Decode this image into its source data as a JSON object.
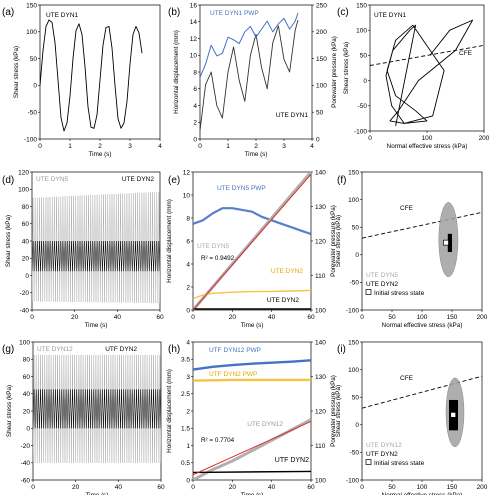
{
  "figure": {
    "panel_letters": [
      "(a)",
      "(b)",
      "(c)",
      "(d)",
      "(e)",
      "(f)",
      "(g)",
      "(h)",
      "(i)"
    ]
  },
  "colors": {
    "black": "#000000",
    "dark_gray": "#333333",
    "mid_gray": "#808080",
    "light_gray": "#bdbdbd",
    "blue": "#4472c4",
    "red": "#e02020",
    "yellow": "#f5c242",
    "axis": "#000000"
  },
  "chart_data": [
    {
      "panel": "(a)",
      "type": "line",
      "xlabel": "Time (s)",
      "ylabel": "Shear stress (kPa)",
      "xlim": [
        0,
        4
      ],
      "ylim": [
        -100,
        150
      ],
      "xticks": [
        0,
        1,
        2,
        3,
        4
      ],
      "yticks": [
        -100,
        -50,
        0,
        50,
        100,
        150
      ],
      "legend": [
        {
          "text": "UTE DYN1",
          "color": "#000000"
        }
      ],
      "series": [
        {
          "name": "UTE DYN1",
          "color": "#000000",
          "x": [
            0.0,
            0.1,
            0.2,
            0.3,
            0.4,
            0.5,
            0.6,
            0.7,
            0.8,
            0.9,
            1.0,
            1.1,
            1.2,
            1.3,
            1.4,
            1.5,
            1.6,
            1.7,
            1.8,
            1.9,
            2.0,
            2.1,
            2.2,
            2.3,
            2.4,
            2.5,
            2.6,
            2.7,
            2.8,
            2.9,
            3.0,
            3.1,
            3.2,
            3.3,
            3.4
          ],
          "y": [
            0,
            65,
            110,
            122,
            118,
            80,
            10,
            -60,
            -85,
            -70,
            -20,
            50,
            102,
            115,
            95,
            35,
            -40,
            -78,
            -80,
            -55,
            10,
            75,
            108,
            110,
            70,
            0,
            -62,
            -80,
            -70,
            -30,
            40,
            95,
            110,
            98,
            60
          ]
        }
      ]
    },
    {
      "panel": "(b)",
      "type": "line",
      "xlabel": "Time (s)",
      "ylabel": "Horizontal displacement (mm)",
      "y2label": "Porewater pressure (kPa)",
      "xlim": [
        0,
        4
      ],
      "ylim": [
        0,
        16
      ],
      "y2lim": [
        0,
        250
      ],
      "xticks": [
        0,
        1,
        2,
        3,
        4
      ],
      "yticks": [
        0,
        2,
        4,
        6,
        8,
        10,
        12,
        14,
        16
      ],
      "y2ticks": [
        0,
        50,
        100,
        150,
        200,
        250
      ],
      "legend": [
        {
          "text": "UTE DYN1 PWP",
          "color": "#4472c4"
        },
        {
          "text": "UTE DYN1",
          "color": "#000000"
        }
      ],
      "series": [
        {
          "name": "UTE DYN1",
          "axis": "left",
          "color": "#333333",
          "x": [
            0.0,
            0.2,
            0.4,
            0.6,
            0.8,
            1.0,
            1.2,
            1.4,
            1.6,
            1.8,
            2.0,
            2.2,
            2.4,
            2.6,
            2.8,
            3.0,
            3.2,
            3.4,
            3.5
          ],
          "y": [
            1.0,
            6.5,
            8.0,
            4.0,
            2.5,
            8.0,
            11.0,
            7.0,
            4.5,
            10.0,
            12.5,
            8.5,
            6.0,
            11.5,
            13.5,
            9.5,
            8.0,
            13.0,
            14.2
          ]
        },
        {
          "name": "UTE DYN1 PWP",
          "axis": "right",
          "color": "#4472c4",
          "x": [
            0.0,
            0.2,
            0.4,
            0.6,
            0.8,
            1.0,
            1.2,
            1.4,
            1.6,
            1.8,
            2.0,
            2.2,
            2.4,
            2.6,
            2.8,
            3.0,
            3.2,
            3.4,
            3.5
          ],
          "y": [
            115,
            140,
            175,
            155,
            160,
            190,
            185,
            178,
            200,
            210,
            190,
            205,
            220,
            200,
            215,
            225,
            205,
            220,
            235
          ]
        }
      ]
    },
    {
      "panel": "(c)",
      "type": "line",
      "xlabel": "Normal effective stress (kPa)",
      "ylabel": "Shear stress (kPa)",
      "xlim": [
        0,
        200
      ],
      "ylim": [
        -100,
        150
      ],
      "xticks": [
        0,
        100,
        200
      ],
      "yticks": [
        -100,
        -50,
        0,
        50,
        100,
        150
      ],
      "legend": [
        {
          "text": "UTE DYN1",
          "color": "#000000"
        }
      ],
      "annotations": [
        "CFE"
      ],
      "cfe_line": {
        "x": [
          0,
          260
        ],
        "y": [
          30,
          82
        ]
      },
      "series": [
        {
          "name": "UTE DYN1",
          "color": "#000000",
          "x": [
            105,
            140,
            180,
            150,
            85,
            50,
            35,
            60,
            110,
            130,
            75,
            45,
            30,
            45,
            80,
            100,
            60,
            38,
            28,
            40,
            70,
            80,
            45
          ],
          "y": [
            50,
            100,
            120,
            60,
            0,
            -60,
            -80,
            -85,
            -70,
            20,
            110,
            80,
            20,
            -30,
            -60,
            -80,
            -85,
            -50,
            10,
            60,
            100,
            110,
            -90
          ]
        }
      ]
    },
    {
      "panel": "(d)",
      "type": "line",
      "xlabel": "Time (s)",
      "ylabel": "Shear stress (kPa)",
      "xlim": [
        0,
        60
      ],
      "ylim": [
        -40,
        120
      ],
      "xticks": [
        0,
        20,
        40,
        60
      ],
      "yticks": [
        -40,
        -20,
        0,
        20,
        40,
        60,
        80,
        100,
        120
      ],
      "legend": [
        {
          "text": "UTE DYN5",
          "color": "#b0b0b0"
        },
        {
          "text": "UTE DYN2",
          "color": "#000000"
        }
      ],
      "series": [
        {
          "name": "UTE DYN5",
          "color": "#b0b0b0",
          "cycles": 60,
          "amplitude_range": [
            [
              -30,
              90
            ],
            [
              -32,
              97
            ]
          ]
        },
        {
          "name": "UTE DYN2",
          "color": "#000000",
          "cycles": 60,
          "amplitude_range": [
            [
              5,
              40
            ],
            [
              5,
              40
            ]
          ]
        }
      ]
    },
    {
      "panel": "(e)",
      "type": "line",
      "xlabel": "Time (s)",
      "ylabel": "Horizontal displacement (mm)",
      "y2label": "Porewater pressure (kPa)",
      "xlim": [
        0,
        60
      ],
      "ylim": [
        0,
        12
      ],
      "y2lim": [
        100,
        140
      ],
      "xticks": [
        0,
        20,
        40,
        60
      ],
      "yticks": [
        0,
        2,
        4,
        6,
        8,
        10,
        12
      ],
      "y2ticks": [
        100,
        110,
        120,
        130,
        140
      ],
      "annotations": [
        "R² = 0.9492"
      ],
      "legend": [
        {
          "text": "UTE DYN5 PWP",
          "color": "#4472c4"
        },
        {
          "text": "UTE DYN5",
          "color": "#b0b0b0"
        },
        {
          "text": "UTE DYN2",
          "color": "#f5c242"
        },
        {
          "text": "UTE DYN2",
          "color": "#000000"
        }
      ],
      "series": [
        {
          "name": "UTE DYN5 PWP",
          "axis": "right",
          "color": "#4472c4",
          "x": [
            0,
            5,
            10,
            15,
            20,
            25,
            30,
            35,
            40,
            45,
            50,
            55,
            60
          ],
          "y": [
            125,
            126,
            128,
            129.5,
            129.5,
            129,
            128.5,
            127,
            126,
            125,
            124,
            123,
            122
          ]
        },
        {
          "name": "UTE DYN5",
          "axis": "left",
          "color": "#b0b0b0",
          "x": [
            0,
            10,
            20,
            30,
            40,
            50,
            60
          ],
          "y": [
            0.0,
            2.0,
            4.0,
            6.0,
            8.0,
            10.0,
            12.0
          ]
        },
        {
          "name": "UTE DYN2",
          "axis": "left",
          "color": "#f5c242",
          "x": [
            0,
            5,
            10,
            20,
            30,
            40,
            50,
            60
          ],
          "y": [
            1.0,
            1.3,
            1.45,
            1.55,
            1.6,
            1.62,
            1.65,
            1.7
          ]
        },
        {
          "name": "UTE DYN2",
          "axis": "left",
          "color": "#000000",
          "x": [
            0,
            60
          ],
          "y": [
            0.1,
            0.1
          ]
        },
        {
          "name": "",
          "axis": "left",
          "color": "#e02020",
          "style": "fit",
          "x": [
            0,
            60
          ],
          "y": [
            0,
            11.8
          ]
        }
      ]
    },
    {
      "panel": "(f)",
      "type": "scatter",
      "xlabel": "Normal effective stress (kPa)",
      "ylabel": "Shear stress (kPa)",
      "xlim": [
        0,
        200
      ],
      "ylim": [
        -100,
        150
      ],
      "xticks": [
        0,
        50,
        100,
        150,
        200
      ],
      "yticks": [
        -100,
        -50,
        0,
        50,
        100,
        150
      ],
      "annotations": [
        "CFE"
      ],
      "legend": [
        {
          "text": "UTE DYN5",
          "color": "#b0b0b0"
        },
        {
          "text": "UTE DYN2",
          "color": "#000000"
        },
        {
          "text": "Initial stress state",
          "color": "#000000"
        }
      ],
      "cfe_line": {
        "x": [
          0,
          200
        ],
        "y": [
          30,
          77
        ]
      },
      "series": [
        {
          "name": "UTE DYN5",
          "color": "#a0a0a0",
          "region": {
            "x": [
              128,
              160
            ],
            "y": [
              -40,
              95
            ]
          }
        },
        {
          "name": "UTE DYN2",
          "color": "#000000",
          "region": {
            "x": [
              143,
              150
            ],
            "y": [
              5,
              38
            ]
          }
        },
        {
          "name": "Initial stress state",
          "color": "#000000",
          "x": [
            140
          ],
          "y": [
            22
          ]
        }
      ]
    },
    {
      "panel": "(g)",
      "type": "line",
      "xlabel": "Time (s)",
      "ylabel": "Shear stress (kPa)",
      "xlim": [
        0,
        60
      ],
      "ylim": [
        -60,
        100
      ],
      "xticks": [
        0,
        20,
        40,
        60
      ],
      "yticks": [
        -60,
        -40,
        -20,
        0,
        20,
        40,
        60,
        80,
        100
      ],
      "legend": [
        {
          "text": "UTE DYN12",
          "color": "#b0b0b0"
        },
        {
          "text": "UTF DYN2",
          "color": "#000000"
        }
      ],
      "series": [
        {
          "name": "UTE DYN12",
          "color": "#b0b0b0",
          "cycles": 60,
          "amplitude_range": [
            [
              -40,
              85
            ],
            [
              -40,
              85
            ]
          ]
        },
        {
          "name": "UTF DYN2",
          "color": "#000000",
          "cycles": 60,
          "amplitude_range": [
            [
              0,
              45
            ],
            [
              0,
              45
            ]
          ]
        }
      ]
    },
    {
      "panel": "(h)",
      "type": "line",
      "xlabel": "Time (s)",
      "ylabel": "Horizontal displacement (mm)",
      "y2label": "Porewater pressure (kPa)",
      "xlim": [
        0,
        60
      ],
      "ylim": [
        0,
        4
      ],
      "y2lim": [
        100,
        140
      ],
      "xticks": [
        0,
        20,
        40,
        60
      ],
      "yticks": [
        0,
        0.5,
        1,
        1.5,
        2,
        2.5,
        3,
        3.5,
        4
      ],
      "y2ticks": [
        100,
        110,
        120,
        130,
        140
      ],
      "annotations": [
        "R² = 0.7704"
      ],
      "legend": [
        {
          "text": "UTF DYN12 PWP",
          "color": "#4472c4"
        },
        {
          "text": "UTF DYN2 PWP",
          "color": "#f5c242"
        },
        {
          "text": "UTE DYN12",
          "color": "#b0b0b0"
        },
        {
          "text": "UTF DYN2",
          "color": "#000000"
        }
      ],
      "series": [
        {
          "name": "UTF DYN12 PWP",
          "axis": "left",
          "color": "#4472c4",
          "x": [
            0,
            10,
            20,
            30,
            40,
            50,
            60
          ],
          "y": [
            3.2,
            3.28,
            3.33,
            3.37,
            3.4,
            3.43,
            3.47
          ]
        },
        {
          "name": "UTF DYN2 PWP",
          "axis": "left",
          "color": "#f5c242",
          "x": [
            0,
            10,
            20,
            30,
            40,
            50,
            60
          ],
          "y": [
            2.88,
            2.89,
            2.9,
            2.9,
            2.9,
            2.9,
            2.9
          ]
        },
        {
          "name": "UTE DYN12",
          "axis": "left",
          "color": "#b0b0b0",
          "x": [
            0,
            10,
            20,
            30,
            40,
            50,
            60
          ],
          "y": [
            0.0,
            0.3,
            0.55,
            0.85,
            1.15,
            1.45,
            1.75
          ]
        },
        {
          "name": "UTF DYN2",
          "axis": "left",
          "color": "#000000",
          "x": [
            0,
            60
          ],
          "y": [
            0.22,
            0.25
          ]
        },
        {
          "name": "",
          "axis": "left",
          "color": "#e02020",
          "style": "fit",
          "x": [
            0,
            60
          ],
          "y": [
            0.15,
            1.7
          ]
        }
      ]
    },
    {
      "panel": "(i)",
      "type": "scatter",
      "xlabel": "Normal effective stress (kPa)",
      "ylabel": "Shear stress (kPa)",
      "xlim": [
        0,
        200
      ],
      "ylim": [
        -100,
        150
      ],
      "xticks": [
        0,
        50,
        100,
        150,
        200
      ],
      "yticks": [
        -100,
        -50,
        0,
        50,
        100,
        150
      ],
      "annotations": [
        "CFE"
      ],
      "legend": [
        {
          "text": "UTE DYN12",
          "color": "#b0b0b0"
        },
        {
          "text": "UTF DYN2",
          "color": "#000000"
        },
        {
          "text": "Initial stress state",
          "color": "#000000"
        }
      ],
      "cfe_line": {
        "x": [
          0,
          200
        ],
        "y": [
          30,
          88
        ]
      },
      "series": [
        {
          "name": "UTE DYN12",
          "color": "#a0a0a0",
          "region": {
            "x": [
              140,
              170
            ],
            "y": [
              -40,
              85
            ]
          }
        },
        {
          "name": "UTF DYN2",
          "color": "#000000",
          "region": {
            "x": [
              145,
              160
            ],
            "y": [
              -10,
              45
            ]
          }
        },
        {
          "name": "Initial stress state",
          "color": "#000000",
          "x": [
            152
          ],
          "y": [
            18
          ]
        }
      ]
    }
  ]
}
